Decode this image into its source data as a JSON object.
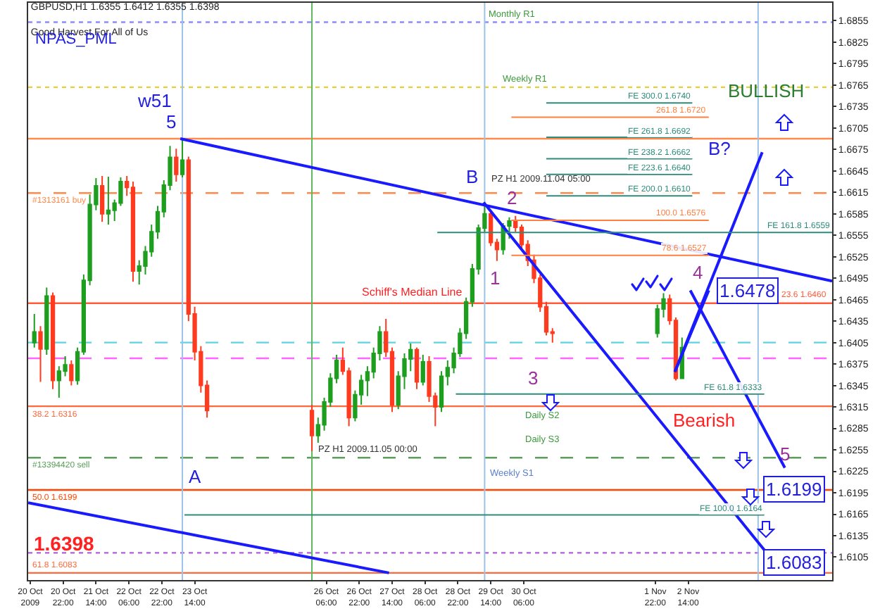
{
  "chart_data": {
    "type": "candlestick",
    "title": "GBPUSD,H1 1.6355 1.6412 1.6355 1.6398",
    "subtitle": "Good Harvest For All of Us",
    "x": [
      "2009-10-20T08:00",
      "2009-10-20T11:00",
      "2009-10-20T14:00",
      "2009-10-20T17:00",
      "2009-10-20T20:00",
      "2009-10-20T23:00",
      "2009-10-21T02:00",
      "2009-10-21T05:00",
      "2009-10-21T08:00",
      "2009-10-21T11:00",
      "2009-10-21T14:00",
      "2009-10-21T17:00",
      "2009-10-21T20:00",
      "2009-10-21T23:00",
      "2009-10-22T02:00",
      "2009-10-22T05:00",
      "2009-10-22T08:00",
      "2009-10-22T11:00",
      "2009-10-22T14:00",
      "2009-10-22T17:00",
      "2009-10-22T20:00",
      "2009-10-22T23:00",
      "2009-10-23T02:00",
      "2009-10-23T05:00",
      "2009-10-23T08:00",
      "2009-10-23T11:00",
      "2009-10-23T14:00",
      "2009-10-23T17:00",
      "2009-10-23T20:00",
      "2009-10-25T23:00",
      "2009-10-26T02:00",
      "2009-10-26T05:00",
      "2009-10-26T08:00",
      "2009-10-26T11:00",
      "2009-10-26T14:00",
      "2009-10-26T17:00",
      "2009-10-26T20:00",
      "2009-10-26T23:00",
      "2009-10-27T02:00",
      "2009-10-27T05:00",
      "2009-10-27T08:00",
      "2009-10-27T11:00",
      "2009-10-27T14:00",
      "2009-10-27T17:00",
      "2009-10-27T20:00",
      "2009-10-27T23:00",
      "2009-10-28T02:00",
      "2009-10-28T05:00",
      "2009-10-28T08:00",
      "2009-10-28T11:00",
      "2009-10-28T14:00",
      "2009-10-28T17:00",
      "2009-10-28T20:00",
      "2009-10-28T23:00",
      "2009-10-29T02:00",
      "2009-10-29T05:00",
      "2009-10-29T08:00",
      "2009-10-29T11:00",
      "2009-10-29T14:00",
      "2009-10-29T17:00",
      "2009-10-29T20:00",
      "2009-10-29T23:00",
      "2009-10-30T02:00",
      "2009-10-30T05:00",
      "2009-10-30T08:00",
      "2009-10-30T11:00",
      "2009-10-30T14:00",
      "2009-10-30T17:00",
      "2009-10-30T20:00",
      "2009-11-01T23:00",
      "2009-11-02T02:00",
      "2009-11-02T05:00",
      "2009-11-02T08:00",
      "2009-11-02T11:00"
    ],
    "ohlc": [
      [
        1.6405,
        1.6445,
        1.6398,
        1.642
      ],
      [
        1.642,
        1.6428,
        1.635,
        1.6396
      ],
      [
        1.6396,
        1.6482,
        1.6388,
        1.647
      ],
      [
        1.647,
        1.6475,
        1.634,
        1.6352
      ],
      [
        1.6352,
        1.6372,
        1.6328,
        1.6365
      ],
      [
        1.6365,
        1.6386,
        1.6358,
        1.6374
      ],
      [
        1.6374,
        1.638,
        1.6345,
        1.6352
      ],
      [
        1.6352,
        1.6398,
        1.6346,
        1.6392
      ],
      [
        1.6392,
        1.65,
        1.6388,
        1.6492
      ],
      [
        1.6492,
        1.6612,
        1.6485,
        1.6598
      ],
      [
        1.6598,
        1.6635,
        1.659,
        1.6624
      ],
      [
        1.6624,
        1.6638,
        1.6574,
        1.6585
      ],
      [
        1.6585,
        1.6637,
        1.657,
        1.659
      ],
      [
        1.659,
        1.6605,
        1.6575,
        1.66
      ],
      [
        1.66,
        1.6636,
        1.6596,
        1.663
      ],
      [
        1.663,
        1.6638,
        1.661,
        1.6622
      ],
      [
        1.6622,
        1.663,
        1.649,
        1.6505
      ],
      [
        1.6505,
        1.652,
        1.6486,
        1.6512
      ],
      [
        1.6512,
        1.654,
        1.65,
        1.6532
      ],
      [
        1.6532,
        1.657,
        1.6525,
        1.656
      ],
      [
        1.656,
        1.6596,
        1.655,
        1.6588
      ],
      [
        1.6588,
        1.6632,
        1.658,
        1.6625
      ],
      [
        1.6625,
        1.668,
        1.6618,
        1.6664
      ],
      [
        1.6664,
        1.6676,
        1.663,
        1.664
      ],
      [
        1.664,
        1.669,
        1.6636,
        1.666
      ],
      [
        1.666,
        1.6665,
        1.6435,
        1.6445
      ],
      [
        1.6445,
        1.6455,
        1.638,
        1.6392
      ],
      [
        1.6392,
        1.64,
        1.6335,
        1.6345
      ],
      [
        1.6345,
        1.6352,
        1.63,
        1.631
      ],
      [
        1.631,
        1.6318,
        1.6253,
        1.6275
      ],
      [
        1.6275,
        1.63,
        1.6265,
        1.629
      ],
      [
        1.629,
        1.6328,
        1.6282,
        1.6322
      ],
      [
        1.6322,
        1.6362,
        1.6315,
        1.6355
      ],
      [
        1.6355,
        1.6388,
        1.6348,
        1.638
      ],
      [
        1.638,
        1.6398,
        1.636,
        1.6365
      ],
      [
        1.6365,
        1.637,
        1.6288,
        1.63
      ],
      [
        1.63,
        1.6338,
        1.6295,
        1.6332
      ],
      [
        1.6332,
        1.636,
        1.6318,
        1.6352
      ],
      [
        1.6352,
        1.6372,
        1.633,
        1.6364
      ],
      [
        1.6364,
        1.6398,
        1.6355,
        1.639
      ],
      [
        1.639,
        1.6428,
        1.638,
        1.642
      ],
      [
        1.642,
        1.6438,
        1.6385,
        1.6392
      ],
      [
        1.6392,
        1.6398,
        1.6308,
        1.6318
      ],
      [
        1.6318,
        1.6365,
        1.6312,
        1.6358
      ],
      [
        1.6358,
        1.639,
        1.634,
        1.6382
      ],
      [
        1.6382,
        1.6404,
        1.6365,
        1.6395
      ],
      [
        1.6395,
        1.6398,
        1.634,
        1.635
      ],
      [
        1.635,
        1.6388,
        1.6345,
        1.6378
      ],
      [
        1.6378,
        1.6386,
        1.6322,
        1.633
      ],
      [
        1.633,
        1.6335,
        1.6288,
        1.6315
      ],
      [
        1.6315,
        1.6365,
        1.6308,
        1.6358
      ],
      [
        1.6358,
        1.638,
        1.6345,
        1.637
      ],
      [
        1.637,
        1.6398,
        1.6362,
        1.639
      ],
      [
        1.639,
        1.6425,
        1.6385,
        1.6418
      ],
      [
        1.6418,
        1.6468,
        1.641,
        1.6462
      ],
      [
        1.6462,
        1.6515,
        1.6455,
        1.6508
      ],
      [
        1.6508,
        1.657,
        1.65,
        1.6565
      ],
      [
        1.6565,
        1.6601,
        1.656,
        1.6585
      ],
      [
        1.6585,
        1.659,
        1.654,
        1.6545
      ],
      [
        1.6545,
        1.655,
        1.6519,
        1.6535
      ],
      [
        1.6535,
        1.6572,
        1.6528,
        1.6568
      ],
      [
        1.6568,
        1.658,
        1.655,
        1.6575
      ],
      [
        1.6575,
        1.6582,
        1.656,
        1.6566
      ],
      [
        1.6566,
        1.657,
        1.6535,
        1.6542
      ],
      [
        1.6542,
        1.6548,
        1.6512,
        1.652
      ],
      [
        1.652,
        1.6528,
        1.6488,
        1.6495
      ],
      [
        1.6495,
        1.65,
        1.6448,
        1.6455
      ],
      [
        1.6455,
        1.6462,
        1.6415,
        1.642
      ],
      [
        1.642,
        1.6425,
        1.6405,
        1.6418
      ],
      [
        1.6418,
        1.6458,
        1.6412,
        1.6452
      ],
      [
        1.6452,
        1.6474,
        1.644,
        1.6466
      ],
      [
        1.6466,
        1.6472,
        1.643,
        1.6436
      ],
      [
        1.6436,
        1.644,
        1.6352,
        1.6355
      ],
      [
        1.6355,
        1.6412,
        1.6355,
        1.6398
      ]
    ],
    "colors": [
      "#1e9e1e",
      "#ff3b1f",
      "#1e9e1e",
      "#ff3b1f",
      "#1e9e1e",
      "#1e9e1e",
      "#ff3b1f",
      "#1e9e1e",
      "#1e9e1e",
      "#1e9e1e",
      "#1e9e1e",
      "#ff3b1f",
      "#1e9e1e",
      "#1e9e1e",
      "#1e9e1e",
      "#ff3b1f",
      "#ff3b1f",
      "#1e9e1e",
      "#1e9e1e",
      "#1e9e1e",
      "#1e9e1e",
      "#1e9e1e",
      "#1e9e1e",
      "#ff3b1f",
      "#1e9e1e",
      "#ff3b1f",
      "#ff3b1f",
      "#ff3b1f",
      "#ff3b1f",
      "#ff3b1f",
      "#1e9e1e",
      "#1e9e1e",
      "#1e9e1e",
      "#1e9e1e",
      "#ff3b1f",
      "#ff3b1f",
      "#1e9e1e",
      "#1e9e1e",
      "#1e9e1e",
      "#1e9e1e",
      "#1e9e1e",
      "#ff3b1f",
      "#ff3b1f",
      "#1e9e1e",
      "#1e9e1e",
      "#1e9e1e",
      "#ff3b1f",
      "#1e9e1e",
      "#ff3b1f",
      "#ff3b1f",
      "#1e9e1e",
      "#1e9e1e",
      "#1e9e1e",
      "#1e9e1e",
      "#1e9e1e",
      "#1e9e1e",
      "#1e9e1e",
      "#1e9e1e",
      "#ff3b1f",
      "#ff3b1f",
      "#1e9e1e",
      "#1e9e1e",
      "#ff3b1f",
      "#ff3b1f",
      "#ff3b1f",
      "#ff3b1f",
      "#ff3b1f",
      "#ff3b1f",
      "#ff3b1f",
      "#1e9e1e",
      "#1e9e1e",
      "#ff3b1f",
      "#ff3b1f",
      "#1e9e1e"
    ],
    "xlim": [
      "2009-10-20T05:00",
      "2009-11-05T12:00"
    ],
    "xticks": [
      {
        "value": "2009-10-20T06:00",
        "label": "20 Oct 2009"
      },
      {
        "value": "2009-10-20T22:00",
        "label": "20 Oct 22:00"
      },
      {
        "value": "2009-10-21T14:00",
        "label": "21 Oct 14:00"
      },
      {
        "value": "2009-10-22T06:00",
        "label": "22 Oct 06:00"
      },
      {
        "value": "2009-10-22T22:00",
        "label": "22 Oct 22:00"
      },
      {
        "value": "2009-10-23T14:00",
        "label": "23 Oct 14:00"
      },
      {
        "value": "2009-10-26T06:00",
        "label": "26 Oct 06:00"
      },
      {
        "value": "2009-10-26T22:00",
        "label": "26 Oct 22:00"
      },
      {
        "value": "2009-10-27T14:00",
        "label": "27 Oct 14:00"
      },
      {
        "value": "2009-10-28T06:00",
        "label": "28 Oct 06:00"
      },
      {
        "value": "2009-10-28T22:00",
        "label": "28 Oct 22:00"
      },
      {
        "value": "2009-10-29T14:00",
        "label": "29 Oct 14:00"
      },
      {
        "value": "2009-10-30T06:00",
        "label": "30 Oct 06:00"
      },
      {
        "value": "2009-11-01T22:00",
        "label": "1 Nov 22:00"
      },
      {
        "value": "2009-11-02T14:00",
        "label": "2 Nov 14:00"
      }
    ],
    "ylim": [
      1.6073,
      1.688
    ],
    "yticks": [
      1.6105,
      1.6135,
      1.6165,
      1.6195,
      1.6225,
      1.6255,
      1.6285,
      1.6315,
      1.6345,
      1.6375,
      1.6405,
      1.6435,
      1.6465,
      1.6495,
      1.6525,
      1.6555,
      1.6585,
      1.6615,
      1.6645,
      1.6675,
      1.6705,
      1.6735,
      1.6765,
      1.6795,
      1.6825,
      1.6855
    ],
    "series": [
      {
        "type": "line",
        "color": "#1a1aff",
        "x": [
          "2009-10-23T07:00",
          "2009-11-05T12:00"
        ],
        "values": [
          1.669,
          1.6491
        ]
      },
      {
        "type": "line",
        "color": "#1a1aff",
        "x": [
          "2009-10-20T05:00",
          "2009-10-27T12:30"
        ],
        "values": [
          1.6181,
          1.6083
        ]
      },
      {
        "type": "line",
        "color": "#1a1aff",
        "x": [
          "2009-10-29T10:30",
          "2009-11-04T03:00"
        ],
        "values": [
          1.6601,
          1.6115
        ]
      },
      {
        "type": "line",
        "color": "#1a1aff",
        "x": [
          "2009-11-02T15:00",
          "2009-11-04T13:00"
        ],
        "values": [
          1.6478,
          1.623
        ]
      },
      {
        "type": "line",
        "color": "#1a1aff",
        "x": [
          "2009-11-02T07:30",
          "2009-11-04T02:00"
        ],
        "values": [
          1.6364,
          1.6671
        ]
      },
      {
        "type": "line",
        "color": "#1a1aff",
        "x": [
          "2009-11-02T07:30",
          "2009-11-03T00:00"
        ],
        "values": [
          1.6364,
          1.6478
        ]
      },
      {
        "type": "line",
        "name": "FE 300.0 1.6740",
        "color": "#2e8b7a",
        "x": [
          "2009-10-30T17:00",
          "2009-11-02T16:00"
        ],
        "values": [
          1.674,
          1.674
        ]
      },
      {
        "type": "line",
        "name": "261.8 1.6720",
        "color": "#ff7f3f",
        "x": [
          "2009-10-30T00:00",
          "2009-11-03T00:00"
        ],
        "values": [
          1.672,
          1.672
        ]
      },
      {
        "type": "line",
        "name": "FE 261.8 1.6692",
        "color": "#2e8b7a",
        "x": [
          "2009-10-30T17:00",
          "2009-11-02T16:00"
        ],
        "values": [
          1.6692,
          1.6692
        ]
      },
      {
        "type": "line",
        "name": "FE 238.2 1.6662",
        "color": "#2e8b7a",
        "x": [
          "2009-10-30T17:00",
          "2009-11-02T16:00"
        ],
        "values": [
          1.6662,
          1.6662
        ]
      },
      {
        "type": "line",
        "name": "FE 223.6 1.6640",
        "color": "#2e8b7a",
        "x": [
          "2009-10-30T17:00",
          "2009-11-02T16:00"
        ],
        "values": [
          1.664,
          1.664
        ]
      },
      {
        "type": "line",
        "name": "FE 200.0 1.6610",
        "color": "#2e8b7a",
        "x": [
          "2009-10-30T17:00",
          "2009-11-02T16:00"
        ],
        "values": [
          1.661,
          1.661
        ]
      },
      {
        "type": "line",
        "name": "100.0 1.6576",
        "color": "#ff7f3f",
        "x": [
          "2009-10-30T00:00",
          "2009-11-03T00:00"
        ],
        "values": [
          1.6576,
          1.6576
        ]
      },
      {
        "type": "line",
        "name": "FE 161.8 1.6559",
        "color": "#2e8b7a",
        "x": [
          "2009-10-28T12:00",
          "2009-11-05T12:00"
        ],
        "values": [
          1.6559,
          1.6559
        ]
      },
      {
        "type": "line",
        "name": "78.6 1.6527",
        "color": "#ff7f3f",
        "x": [
          "2009-10-30T00:00",
          "2009-11-03T00:00"
        ],
        "values": [
          1.6527,
          1.6527
        ]
      },
      {
        "type": "line",
        "name": "FE 61.8 1.6333",
        "color": "#2e8b7a",
        "x": [
          "2009-10-28T21:00",
          "2009-11-04T03:00"
        ],
        "values": [
          1.6333,
          1.6333
        ]
      },
      {
        "type": "line",
        "name": "FE 100.0 1.6164",
        "color": "#2e8b7a",
        "x": [
          "2009-10-23T09:00",
          "2009-11-04T03:00"
        ],
        "values": [
          1.6164,
          1.6164
        ]
      }
    ],
    "ref_lines": [
      {
        "axis": "y",
        "value": 1.6853,
        "color": "#8c8cff",
        "line_style": "dotted"
      },
      {
        "axis": "y",
        "value": 1.6762,
        "color": "#e6cf3a",
        "line_style": "dotted"
      },
      {
        "axis": "y",
        "value": 1.669,
        "color": "#ff8a4c"
      },
      {
        "axis": "y",
        "value": 1.6614,
        "label": "#1313161 buy",
        "color": "#ff8a4c",
        "line_style": "dashed"
      },
      {
        "axis": "y",
        "value": 1.646,
        "label": "23.6 1.6460",
        "color": "#ff5a3a"
      },
      {
        "axis": "y",
        "value": 1.6405,
        "color": "#5fd3e0",
        "line_style": "dashed"
      },
      {
        "axis": "y",
        "value": 1.6383,
        "color": "#ff66ff",
        "line_style": "dashed"
      },
      {
        "axis": "y",
        "value": 1.6316,
        "label": "38.2 1.6316",
        "color": "#ff6a3d"
      },
      {
        "axis": "y",
        "value": 1.6244,
        "label": "#13394420 sell",
        "color": "#5aa05a",
        "line_style": "dashed"
      },
      {
        "axis": "y",
        "value": 1.6199,
        "label": "50.0 1.6199",
        "color": "#ff4500"
      },
      {
        "axis": "y",
        "value": 1.6111,
        "color": "#b05fd8",
        "line_style": "dotted"
      },
      {
        "axis": "y",
        "value": 1.6083,
        "label": "61.8 1.6083",
        "color": "#ff6a3d"
      },
      {
        "axis": "x",
        "value": "2009-10-23T08:00",
        "color": "#9cc3e6"
      },
      {
        "axis": "x",
        "value": "2009-10-25T23:00",
        "color": "#5cb85c"
      },
      {
        "axis": "x",
        "value": "2009-10-29T11:00",
        "color": "#9cc3e6"
      },
      {
        "axis": "x",
        "value": "2009-11-04T00:00",
        "color": "#9cc3e6"
      }
    ],
    "annotations": [
      "NPAS_PML",
      "w51",
      "5",
      "A",
      "B",
      "B?",
      "1",
      "2",
      "3",
      "4",
      {
        "text": "5",
        "x": "2009-11-04T13:00",
        "y": 1.623
      },
      "BULLISH",
      "Bearish",
      "Schiff's Median Line",
      {
        "text": "1.6478",
        "x": "2009-11-03T00:00",
        "y": 1.6478
      },
      "1.6199",
      "1.6083",
      "1.6398",
      "PZ H1 2009.11.04 05:00",
      "PZ H1 2009.11.05 00:00",
      {
        "text": "Monthly R1",
        "x": "2009-10-30T00:00",
        "y": 1.6853
      },
      {
        "text": "Weekly R1",
        "x": "2009-10-30T06:30",
        "y": 1.6762
      },
      "Daily S2",
      "Daily S3",
      "Weekly S1"
    ]
  }
}
